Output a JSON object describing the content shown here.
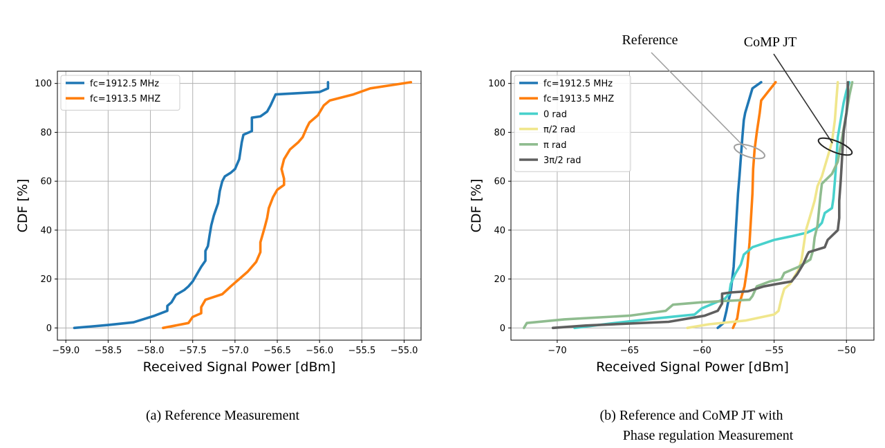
{
  "chart_data": [
    {
      "type": "line",
      "caption": "(a) Reference Measurement",
      "xlabel": "Received Signal Power [dBm]",
      "ylabel": "CDF [%]",
      "xlim": [
        -59.1,
        -54.8
      ],
      "ylim": [
        -5,
        105
      ],
      "xticks": [
        -59.0,
        -58.5,
        -58.0,
        -57.5,
        -57.0,
        -56.5,
        -56.0,
        -55.5,
        -55.0
      ],
      "xtick_labels": [
        "−59.0",
        "−58.5",
        "−58.0",
        "−57.5",
        "−57.0",
        "−56.5",
        "−56.0",
        "−55.5",
        "−55.0"
      ],
      "yticks": [
        0,
        20,
        40,
        60,
        80,
        100
      ],
      "ytick_labels": [
        "0",
        "20",
        "40",
        "60",
        "80",
        "100"
      ],
      "grid": true,
      "legend_position": "top-left",
      "series": [
        {
          "name": "fc=1912.5 MHz",
          "color": "#1f77b4",
          "points": [
            [
              -58.9,
              0
            ],
            [
              -58.5,
              1.2
            ],
            [
              -58.2,
              2.3
            ],
            [
              -57.95,
              5
            ],
            [
              -57.8,
              7
            ],
            [
              -57.8,
              9
            ],
            [
              -57.75,
              10.5
            ],
            [
              -57.7,
              13.5
            ],
            [
              -57.6,
              15.5
            ],
            [
              -57.55,
              17
            ],
            [
              -57.5,
              19
            ],
            [
              -57.45,
              22
            ],
            [
              -57.4,
              25
            ],
            [
              -57.35,
              27.5
            ],
            [
              -57.35,
              31.5
            ],
            [
              -57.32,
              33.5
            ],
            [
              -57.3,
              38
            ],
            [
              -57.28,
              42
            ],
            [
              -57.25,
              46
            ],
            [
              -57.2,
              51
            ],
            [
              -57.18,
              56
            ],
            [
              -57.15,
              60
            ],
            [
              -57.12,
              62
            ],
            [
              -57.05,
              63.5
            ],
            [
              -57.0,
              65
            ],
            [
              -56.95,
              69
            ],
            [
              -56.92,
              76
            ],
            [
              -56.9,
              79
            ],
            [
              -56.8,
              80.5
            ],
            [
              -56.8,
              86
            ],
            [
              -56.7,
              86.5
            ],
            [
              -56.62,
              88.5
            ],
            [
              -56.58,
              91
            ],
            [
              -56.52,
              95.5
            ],
            [
              -56.0,
              96.5
            ],
            [
              -55.9,
              98
            ],
            [
              -55.9,
              100.5
            ]
          ]
        },
        {
          "name": "fc=1913.5 MHZ",
          "color": "#ff7f0e",
          "points": [
            [
              -57.85,
              0
            ],
            [
              -57.55,
              2
            ],
            [
              -57.5,
              4.5
            ],
            [
              -57.4,
              6
            ],
            [
              -57.4,
              8.5
            ],
            [
              -57.35,
              11.5
            ],
            [
              -57.15,
              13.8
            ],
            [
              -57.05,
              17
            ],
            [
              -56.95,
              20
            ],
            [
              -56.85,
              23
            ],
            [
              -56.8,
              25
            ],
            [
              -56.75,
              27
            ],
            [
              -56.7,
              31
            ],
            [
              -56.7,
              35
            ],
            [
              -56.65,
              41
            ],
            [
              -56.62,
              45
            ],
            [
              -56.6,
              49
            ],
            [
              -56.55,
              53.5
            ],
            [
              -56.5,
              56.5
            ],
            [
              -56.42,
              58.5
            ],
            [
              -56.42,
              61
            ],
            [
              -56.45,
              65
            ],
            [
              -56.42,
              69
            ],
            [
              -56.35,
              73
            ],
            [
              -56.25,
              76
            ],
            [
              -56.2,
              78
            ],
            [
              -56.15,
              82
            ],
            [
              -56.12,
              84
            ],
            [
              -56.02,
              87
            ],
            [
              -55.95,
              91
            ],
            [
              -55.88,
              93
            ],
            [
              -55.6,
              95.5
            ],
            [
              -55.4,
              98
            ],
            [
              -54.92,
              100.5
            ]
          ]
        }
      ]
    },
    {
      "type": "line",
      "caption_lines": [
        "(b) Reference and CoMP JT with",
        "Phase regulation Measurement"
      ],
      "xlabel": "Received Signal Power [dBm]",
      "ylabel": "CDF [%]",
      "xlim": [
        -73.2,
        -48.1
      ],
      "ylim": [
        -5,
        105
      ],
      "xticks": [
        -70,
        -65,
        -60,
        -55,
        -50
      ],
      "xtick_labels": [
        "−70",
        "−65",
        "−60",
        "−55",
        "−50"
      ],
      "yticks": [
        0,
        20,
        40,
        60,
        80,
        100
      ],
      "ytick_labels": [
        "0",
        "20",
        "40",
        "60",
        "80",
        "100"
      ],
      "grid": true,
      "legend_position": "top-left",
      "annotations": [
        {
          "text": "Reference",
          "color": "#999999",
          "target": [
            -57.0,
            74
          ]
        },
        {
          "text": "CoMP JT",
          "color": "#333333",
          "target": [
            -50.6,
            76
          ]
        }
      ],
      "series": [
        {
          "name": "fc=1912.5 MHz",
          "color": "#1f77b4",
          "points": [
            [
              -58.9,
              0
            ],
            [
              -58.5,
              2
            ],
            [
              -58.3,
              7
            ],
            [
              -58.2,
              10
            ],
            [
              -58.0,
              15
            ],
            [
              -57.9,
              20
            ],
            [
              -57.8,
              25
            ],
            [
              -57.7,
              35
            ],
            [
              -57.6,
              45
            ],
            [
              -57.5,
              55
            ],
            [
              -57.4,
              62
            ],
            [
              -57.3,
              70
            ],
            [
              -57.2,
              78
            ],
            [
              -57.1,
              85
            ],
            [
              -57.0,
              88
            ],
            [
              -56.8,
              92
            ],
            [
              -56.6,
              96
            ],
            [
              -56.5,
              98
            ],
            [
              -55.9,
              100.5
            ]
          ]
        },
        {
          "name": "fc=1913.5 MHZ",
          "color": "#ff7f0e",
          "points": [
            [
              -57.85,
              0
            ],
            [
              -57.55,
              4
            ],
            [
              -57.4,
              10
            ],
            [
              -57.05,
              17
            ],
            [
              -56.85,
              25
            ],
            [
              -56.7,
              35
            ],
            [
              -56.6,
              45
            ],
            [
              -56.5,
              55
            ],
            [
              -56.45,
              65
            ],
            [
              -56.35,
              73
            ],
            [
              -56.2,
              80
            ],
            [
              -56.0,
              88
            ],
            [
              -55.9,
              93
            ],
            [
              -55.5,
              96
            ],
            [
              -54.9,
              100.5
            ]
          ]
        },
        {
          "name": "0 rad",
          "color": "#48d1cc",
          "points": [
            [
              -68.8,
              0
            ],
            [
              -66.0,
              2
            ],
            [
              -63.0,
              4
            ],
            [
              -60.5,
              5.5
            ],
            [
              -60.0,
              8
            ],
            [
              -59.2,
              10
            ],
            [
              -58.4,
              12
            ],
            [
              -58.1,
              14
            ],
            [
              -58.0,
              18
            ],
            [
              -57.7,
              22
            ],
            [
              -57.3,
              26
            ],
            [
              -57.1,
              30
            ],
            [
              -56.5,
              33
            ],
            [
              -55.0,
              36
            ],
            [
              -53.8,
              37.5
            ],
            [
              -52.7,
              39
            ],
            [
              -52.0,
              41
            ],
            [
              -51.7,
              43
            ],
            [
              -51.5,
              47
            ],
            [
              -51.0,
              49
            ],
            [
              -50.9,
              53
            ],
            [
              -50.8,
              60
            ],
            [
              -50.7,
              68
            ],
            [
              -50.6,
              78
            ],
            [
              -50.4,
              85
            ],
            [
              -50.2,
              92
            ],
            [
              -50.0,
              97
            ],
            [
              -49.8,
              100.5
            ]
          ]
        },
        {
          "name": "π/2 rad",
          "color": "#f0e68c",
          "points": [
            [
              -61.0,
              0
            ],
            [
              -59.5,
              1.5
            ],
            [
              -57.0,
              3
            ],
            [
              -55.0,
              5.5
            ],
            [
              -54.7,
              7
            ],
            [
              -54.5,
              12
            ],
            [
              -54.3,
              16
            ],
            [
              -53.9,
              18
            ],
            [
              -53.7,
              20
            ],
            [
              -53.3,
              24
            ],
            [
              -53.1,
              28
            ],
            [
              -53.0,
              32
            ],
            [
              -52.9,
              36
            ],
            [
              -52.8,
              40
            ],
            [
              -52.6,
              44
            ],
            [
              -52.4,
              48
            ],
            [
              -52.2,
              52
            ],
            [
              -52.0,
              58
            ],
            [
              -51.7,
              62
            ],
            [
              -51.5,
              66
            ],
            [
              -51.3,
              70
            ],
            [
              -51.0,
              76
            ],
            [
              -50.8,
              85
            ],
            [
              -50.7,
              93
            ],
            [
              -50.6,
              100.5
            ]
          ]
        },
        {
          "name": "π rad",
          "color": "#8fbc8f",
          "points": [
            [
              -72.3,
              0
            ],
            [
              -72.1,
              2
            ],
            [
              -69.5,
              3.5
            ],
            [
              -65.0,
              5
            ],
            [
              -62.5,
              7
            ],
            [
              -62.0,
              9.5
            ],
            [
              -60.0,
              10.5
            ],
            [
              -58.5,
              11
            ],
            [
              -56.7,
              11.5
            ],
            [
              -56.5,
              13
            ],
            [
              -56.2,
              17
            ],
            [
              -55.3,
              19
            ],
            [
              -54.5,
              20
            ],
            [
              -54.3,
              22.5
            ],
            [
              -53.3,
              25
            ],
            [
              -52.5,
              28
            ],
            [
              -52.3,
              32
            ],
            [
              -52.2,
              37
            ],
            [
              -52.0,
              42
            ],
            [
              -51.9,
              48
            ],
            [
              -51.8,
              54
            ],
            [
              -51.7,
              59
            ],
            [
              -51.0,
              63
            ],
            [
              -50.6,
              68
            ],
            [
              -50.3,
              78
            ],
            [
              -50.0,
              88
            ],
            [
              -49.8,
              95
            ],
            [
              -49.6,
              100.5
            ]
          ]
        },
        {
          "name": "3π/2 rad",
          "color": "#5f5f5f",
          "points": [
            [
              -70.3,
              0
            ],
            [
              -68.0,
              1
            ],
            [
              -62.3,
              2.5
            ],
            [
              -59.8,
              5
            ],
            [
              -58.9,
              7
            ],
            [
              -58.6,
              10
            ],
            [
              -58.6,
              14
            ],
            [
              -58.0,
              14.5
            ],
            [
              -56.8,
              15
            ],
            [
              -55.7,
              17
            ],
            [
              -54.8,
              18
            ],
            [
              -53.8,
              19
            ],
            [
              -53.4,
              22
            ],
            [
              -53.0,
              26
            ],
            [
              -52.7,
              30
            ],
            [
              -52.6,
              31
            ],
            [
              -51.5,
              33
            ],
            [
              -51.3,
              36
            ],
            [
              -50.6,
              40
            ],
            [
              -50.5,
              45
            ],
            [
              -50.5,
              52
            ],
            [
              -50.4,
              60
            ],
            [
              -50.3,
              70
            ],
            [
              -50.2,
              80
            ],
            [
              -50.0,
              88
            ],
            [
              -49.9,
              95
            ],
            [
              -49.9,
              100.5
            ]
          ]
        }
      ]
    }
  ]
}
